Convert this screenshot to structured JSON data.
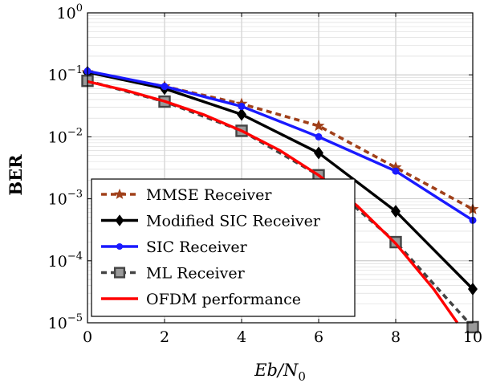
{
  "chart_data": {
    "type": "line",
    "title": "",
    "xlabel": "Eb/N0",
    "xlabel_parts": {
      "main": "Eb/N",
      "sub": "0"
    },
    "ylabel": "BER",
    "xlim": [
      0,
      10
    ],
    "ylim": [
      1e-05,
      1
    ],
    "yscale": "log",
    "x_ticks": [
      0,
      2,
      4,
      6,
      8,
      10
    ],
    "y_ticks": [
      {
        "value": 1e-05,
        "base": "10",
        "exp": "−5"
      },
      {
        "value": 0.0001,
        "base": "10",
        "exp": "−4"
      },
      {
        "value": 0.001,
        "base": "10",
        "exp": "−3"
      },
      {
        "value": 0.01,
        "base": "10",
        "exp": "−2"
      },
      {
        "value": 0.1,
        "base": "10",
        "exp": "−1"
      },
      {
        "value": 1,
        "base": "10",
        "exp": "0"
      }
    ],
    "grid": true,
    "legend_position": "bottom-left",
    "series": [
      {
        "name": "MMSE Receiver",
        "color": "#a0401a",
        "line": "dashed",
        "marker": "star",
        "x": [
          0,
          2,
          4,
          6,
          8,
          10
        ],
        "y": [
          0.11,
          0.065,
          0.034,
          0.015,
          0.0032,
          0.00068
        ]
      },
      {
        "name": "Modified SIC Receiver",
        "color": "#000000",
        "line": "solid",
        "marker": "diamond",
        "x": [
          0,
          2,
          4,
          6,
          8,
          10
        ],
        "y": [
          0.11,
          0.06,
          0.023,
          0.0055,
          0.00063,
          3.5e-05
        ]
      },
      {
        "name": "SIC Receiver",
        "color": "#1a1aff",
        "line": "solid",
        "marker": "circle",
        "x": [
          0,
          2,
          4,
          6,
          8,
          10
        ],
        "y": [
          0.115,
          0.065,
          0.031,
          0.01,
          0.0028,
          0.00045
        ]
      },
      {
        "name": "ML Receiver",
        "color": "#444444",
        "line": "dashed",
        "marker": "square",
        "x": [
          0,
          2,
          4,
          6,
          8,
          10
        ],
        "y": [
          0.08,
          0.037,
          0.0125,
          0.0024,
          0.0002,
          8.5e-06
        ]
      },
      {
        "name": "OFDM performance",
        "color": "#ff0000",
        "line": "solid",
        "marker": "none",
        "x": [
          0,
          1,
          2,
          3,
          4,
          5,
          6,
          7,
          8,
          9,
          9.6
        ],
        "y": [
          0.078,
          0.056,
          0.0375,
          0.023,
          0.0125,
          0.006,
          0.0024,
          0.00077,
          0.00019,
          3.4e-05,
          1e-05
        ]
      }
    ]
  }
}
